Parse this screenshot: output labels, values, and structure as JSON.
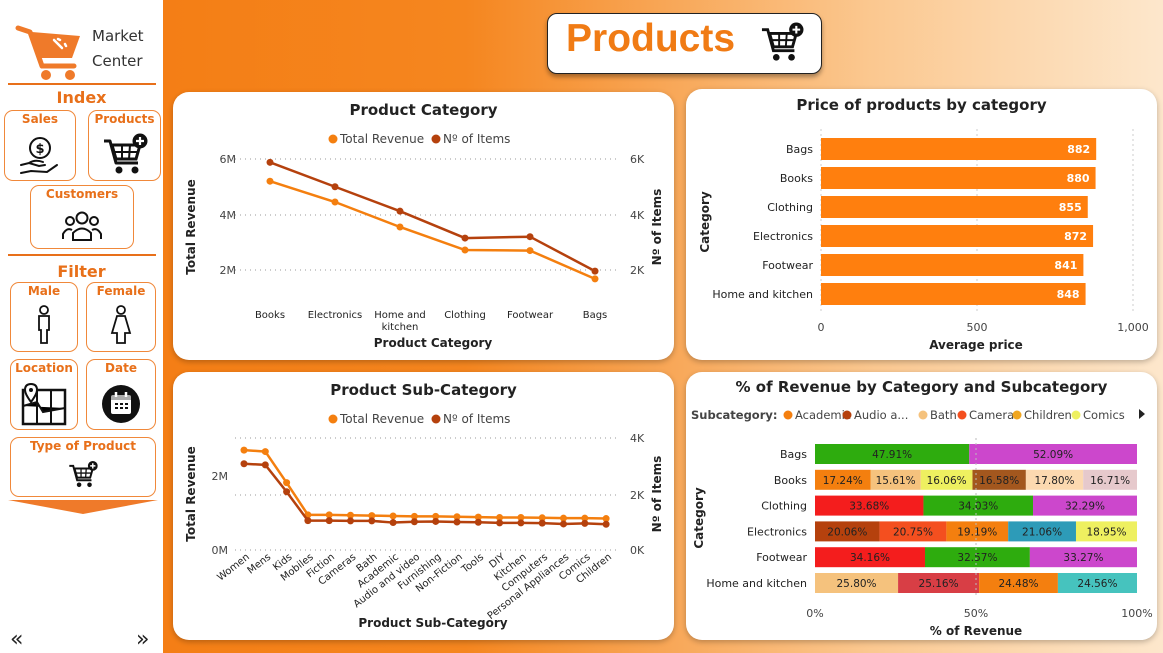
{
  "app": {
    "logo_line1": "Market",
    "logo_line2": "Center",
    "page_title": "Products"
  },
  "sidebar": {
    "index_title": "Index",
    "filter_title": "Filter",
    "nav": {
      "sales": "Sales",
      "products": "Products",
      "customers": "Customers"
    },
    "filters": {
      "male": "Male",
      "female": "Female",
      "location": "Location",
      "date": "Date",
      "type_of_product": "Type of Product"
    },
    "prev_glyph": "«",
    "next_glyph": "»"
  },
  "colors": {
    "orange": "#f47f0f",
    "dark_orange": "#b5410d",
    "bar": "#ff7f0e"
  },
  "chart_data": [
    {
      "id": "product_category",
      "type": "line",
      "title": "Product Category",
      "xlabel": "Product Category",
      "ylabel": "Total Revenue",
      "y2label": "Nº of Items",
      "legend": [
        "Total Revenue",
        "Nº of Items"
      ],
      "categories": [
        "Books",
        "Electronics",
        "Home and kitchen",
        "Clothing",
        "Footwear",
        "Bags"
      ],
      "y_ticks": [
        "6M",
        "4M",
        "2M"
      ],
      "y2_ticks": [
        "6K",
        "4K",
        "2K"
      ],
      "series": [
        {
          "name": "Total Revenue",
          "axis": "left",
          "values": [
            5200000,
            4450000,
            3550000,
            2720000,
            2700000,
            1680000
          ]
        },
        {
          "name": "Nº of Items",
          "axis": "right",
          "values": [
            5880,
            5000,
            4120,
            3150,
            3200,
            1960
          ]
        }
      ],
      "ylim": [
        1000000,
        6500000
      ],
      "y2lim": [
        1000,
        6500
      ]
    },
    {
      "id": "price_by_category",
      "type": "bar",
      "orientation": "horizontal",
      "title": "Price of products by category",
      "xlabel": "Average price",
      "ylabel": "Category",
      "categories": [
        "Bags",
        "Books",
        "Clothing",
        "Electronics",
        "Footwear",
        "Home and kitchen"
      ],
      "values": [
        882,
        880,
        855,
        872,
        841,
        848
      ],
      "x_ticks": [
        "0",
        "500",
        "1,000"
      ],
      "xlim": [
        0,
        1000
      ]
    },
    {
      "id": "product_subcategory",
      "type": "line",
      "title": "Product Sub-Category",
      "xlabel": "Product Sub-Category",
      "ylabel": "Total Revenue",
      "y2label": "Nº of Items",
      "legend": [
        "Total Revenue",
        "Nº of Items"
      ],
      "categories": [
        "Women",
        "Mens",
        "Kids",
        "Mobiles",
        "Fiction",
        "Cameras",
        "Bath",
        "Academic",
        "Audio and video",
        "Furnishing",
        "Non-Fiction",
        "Tools",
        "DIY",
        "Kitchen",
        "Computers",
        "Personal Appliances",
        "Comics",
        "Children"
      ],
      "y_ticks": [
        "2M",
        "0M"
      ],
      "y2_ticks": [
        "4K",
        "2K",
        "0K"
      ],
      "series": [
        {
          "name": "Total Revenue",
          "axis": "left",
          "values": [
            2700000,
            2660000,
            1820000,
            950000,
            950000,
            940000,
            930000,
            920000,
            910000,
            910000,
            900000,
            890000,
            880000,
            880000,
            870000,
            860000,
            860000,
            850000
          ]
        },
        {
          "name": "Nº of Items",
          "axis": "right",
          "values": [
            3080,
            3040,
            2080,
            1050,
            1050,
            1040,
            1040,
            980,
            1010,
            1020,
            1000,
            990,
            970,
            970,
            960,
            930,
            950,
            920
          ]
        }
      ],
      "ylim": [
        0,
        3500000
      ],
      "y2lim": [
        0,
        4000
      ]
    },
    {
      "id": "revenue_pct",
      "type": "bar",
      "stacked": "100%",
      "title": "% of Revenue by Category and Subcategory",
      "xlabel": "% of Revenue",
      "ylabel": "Category",
      "legend_label": "Subcategory:",
      "legend": [
        {
          "name": "Academic",
          "color": "#f47f0f"
        },
        {
          "name": "Audio a...",
          "color": "#b5410d"
        },
        {
          "name": "Bath",
          "color": "#f5c27d"
        },
        {
          "name": "Cameras",
          "color": "#f44f1f"
        },
        {
          "name": "Children",
          "color": "#f0a620"
        },
        {
          "name": "Comics",
          "color": "#eef060"
        }
      ],
      "x_ticks": [
        "0%",
        "50%",
        "100%"
      ],
      "categories": [
        "Bags",
        "Books",
        "Clothing",
        "Electronics",
        "Footwear",
        "Home and kitchen"
      ],
      "rows": [
        {
          "values": [
            47.91,
            52.09
          ],
          "labels": [
            "47.91%",
            "52.09%"
          ],
          "colors": [
            "#2eac0e",
            "#cc47cc"
          ]
        },
        {
          "values": [
            17.24,
            15.61,
            16.06,
            16.58,
            17.8,
            16.71
          ],
          "labels": [
            "17.24%",
            "15.61%",
            "16.06%",
            "16.58%",
            "17.80%",
            "16.71%"
          ],
          "colors": [
            "#f47f0f",
            "#f5c27d",
            "#eef060",
            "#a3571e",
            "#fcd9b0",
            "#e6c9cc"
          ]
        },
        {
          "values": [
            33.68,
            34.03,
            32.29
          ],
          "labels": [
            "33.68%",
            "34.03%",
            "32.29%"
          ],
          "colors": [
            "#f41d1d",
            "#2eac0e",
            "#cc47cc"
          ]
        },
        {
          "values": [
            20.06,
            20.75,
            19.19,
            21.06,
            18.95
          ],
          "labels": [
            "20.06%",
            "20.75%",
            "19.19%",
            "21.06%",
            "18.95%"
          ],
          "colors": [
            "#b5410d",
            "#f44f1f",
            "#f47f0f",
            "#2d9bb8",
            "#eef060"
          ]
        },
        {
          "values": [
            34.16,
            32.57,
            33.27
          ],
          "labels": [
            "34.16%",
            "32.57%",
            "33.27%"
          ],
          "colors": [
            "#f41d1d",
            "#2eac0e",
            "#cc47cc"
          ]
        },
        {
          "values": [
            25.8,
            25.16,
            24.48,
            24.56
          ],
          "labels": [
            "25.80%",
            "25.16%",
            "24.48%",
            "24.56%"
          ],
          "colors": [
            "#f5c27d",
            "#d83e45",
            "#f47f0f",
            "#46c3be"
          ]
        }
      ]
    }
  ]
}
